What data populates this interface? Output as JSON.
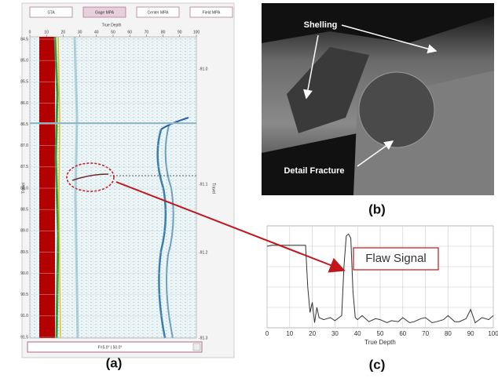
{
  "panel_a": {
    "tabs": [
      "STA",
      "Gage MPA",
      "Center MPA",
      "Field MPA"
    ],
    "top_axis_label": "True Depth",
    "top_ticks": [
      "0",
      "10",
      "20",
      "30",
      "40",
      "50",
      "60",
      "70",
      "80",
      "90",
      "100"
    ],
    "left_ticks": [
      "84.5",
      "85.0",
      "85.5",
      "86.0",
      "86.5",
      "87.0",
      "87.5",
      "88.0",
      "88.5",
      "89.0",
      "89.5",
      "90.0",
      "90.5",
      "91.0",
      "91.5"
    ],
    "left_axis_label": "Travel",
    "right_ticks": [
      "-91.0",
      "-91.1",
      "-91.2",
      "-91.3"
    ],
    "right_axis_label": "Travel",
    "dropdown": "F=5.0° | 50.0°",
    "caption": "(a)"
  },
  "panel_b": {
    "labels": [
      "Shelling",
      "Detail Fracture"
    ],
    "caption": "(b)"
  },
  "chart_data": {
    "type": "line",
    "x": [
      0,
      2,
      17,
      18,
      19,
      20,
      21,
      22,
      23,
      25,
      28,
      30,
      33,
      34,
      35,
      36,
      37,
      38,
      39,
      40,
      42,
      45,
      48,
      50,
      53,
      55,
      58,
      60,
      63,
      65,
      68,
      70,
      73,
      75,
      78,
      80,
      83,
      85,
      88,
      90,
      92,
      95,
      98,
      100
    ],
    "series": [
      {
        "color": "#333333",
        "values": [
          80,
          81,
          81,
          40,
          15,
          25,
          5,
          20,
          10,
          8,
          10,
          7,
          12,
          60,
          90,
          92,
          88,
          35,
          10,
          8,
          12,
          6,
          9,
          8,
          5,
          7,
          6,
          10,
          5,
          6,
          9,
          10,
          5,
          6,
          8,
          12,
          6,
          6,
          9,
          18,
          5,
          10,
          8,
          12
        ]
      }
    ],
    "xlim": [
      0,
      100
    ],
    "ylim": [
      0,
      100
    ],
    "xticks": [
      0,
      10,
      20,
      30,
      40,
      50,
      60,
      70,
      80,
      90,
      100
    ],
    "xlabel": "True Depth",
    "annotation": "Flaw Signal",
    "grid": true,
    "caption": "(c)"
  }
}
